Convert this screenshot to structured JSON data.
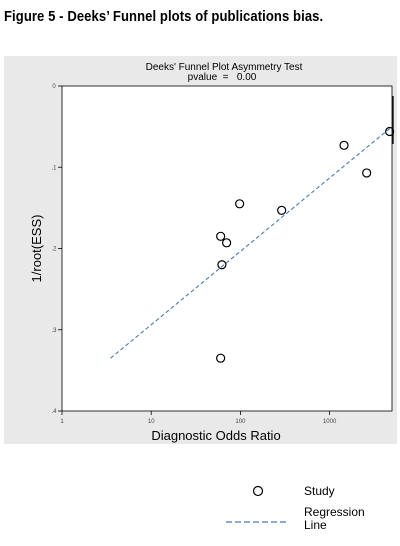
{
  "figure_caption": "Figure 5 - Deeks’ Funnel plots of publications bias.",
  "colors": {
    "panel_background": "#e9e9e9",
    "plot_background": "#ffffff",
    "regression_line": "#4a7bb7",
    "marker": "#000000"
  },
  "chart_data": {
    "type": "scatter",
    "title": "Deeks' Funnel Plot Asymmetry Test",
    "subtitle": "pvalue  =   0.00",
    "xlabel": "Diagnostic Odds Ratio",
    "ylabel": "1/root(ESS)",
    "x_scale": "log",
    "xlim": [
      1,
      5000
    ],
    "ylim": [
      0,
      4
    ],
    "y_reversed": true,
    "x_ticks": [
      {
        "value": 1,
        "label": "1"
      },
      {
        "value": 10,
        "label": "10"
      },
      {
        "value": 100,
        "label": "100"
      },
      {
        "value": 1000,
        "label": "1000"
      }
    ],
    "y_ticks": [
      {
        "value": 0,
        "label": "0"
      },
      {
        "value": 1,
        "label": ".1"
      },
      {
        "value": 2,
        "label": ".2"
      },
      {
        "value": 3,
        "label": ".3"
      },
      {
        "value": 4,
        "label": ".4"
      }
    ],
    "series": [
      {
        "name": "Study",
        "marker": "hollow-circle",
        "points": [
          {
            "x": 60,
            "y": 1.85
          },
          {
            "x": 70,
            "y": 1.93
          },
          {
            "x": 62,
            "y": 2.2
          },
          {
            "x": 98,
            "y": 1.45
          },
          {
            "x": 290,
            "y": 1.53
          },
          {
            "x": 1450,
            "y": 0.73
          },
          {
            "x": 2600,
            "y": 1.07
          },
          {
            "x": 4700,
            "y": 0.56
          },
          {
            "x": 60,
            "y": 3.35
          }
        ]
      },
      {
        "name": "Regression Line",
        "style": "dashed-line",
        "points": [
          {
            "x": 3.5,
            "y": 3.35
          },
          {
            "x": 5000,
            "y": 0.5
          }
        ]
      }
    ],
    "legend": {
      "placement": "below",
      "entries": [
        {
          "label": "Study",
          "symbol": "hollow-circle"
        },
        {
          "label": "Regression Line",
          "lines": [
            "Regression",
            "Line"
          ],
          "symbol": "dashed-line"
        }
      ]
    },
    "grid": false
  }
}
